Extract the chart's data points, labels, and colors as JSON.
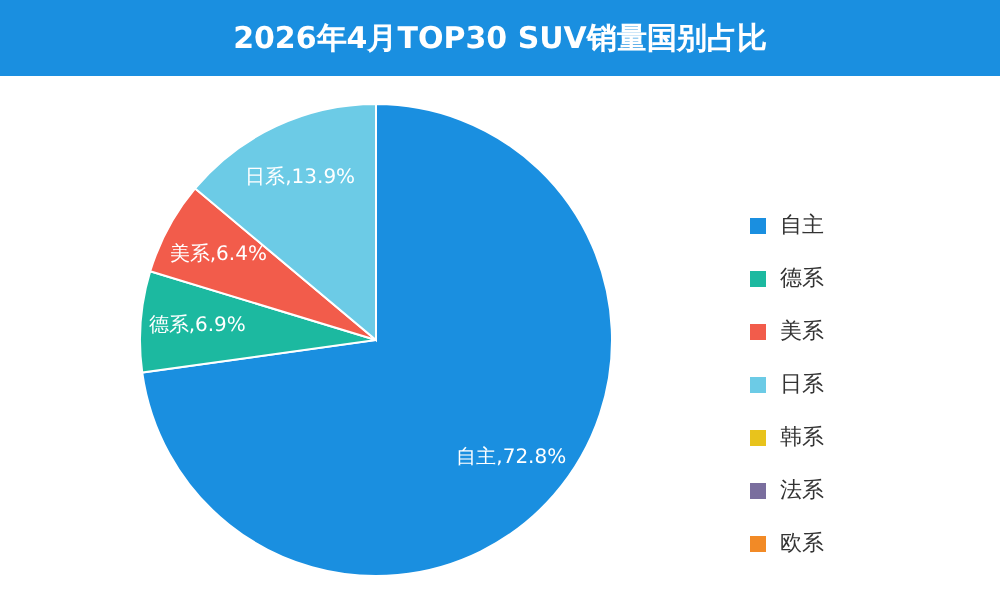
{
  "chart_data": {
    "type": "pie",
    "title": "2026年4月TOP30 SUV销量国别占比",
    "categories": [
      "自主",
      "德系",
      "美系",
      "日系",
      "韩系",
      "法系",
      "欧系"
    ],
    "values": [
      72.8,
      6.9,
      6.4,
      13.9,
      0,
      0,
      0
    ],
    "colors": [
      "#1a8fe0",
      "#1cb9a0",
      "#f25c4b",
      "#6ccbe6",
      "#e8c31c",
      "#7a6e9e",
      "#f28a26"
    ],
    "value_labels": [
      "自主,72.8%",
      "德系,6.9%",
      "美系,6.4%",
      "日系,13.9%",
      null,
      null,
      null
    ],
    "legend": "right"
  }
}
